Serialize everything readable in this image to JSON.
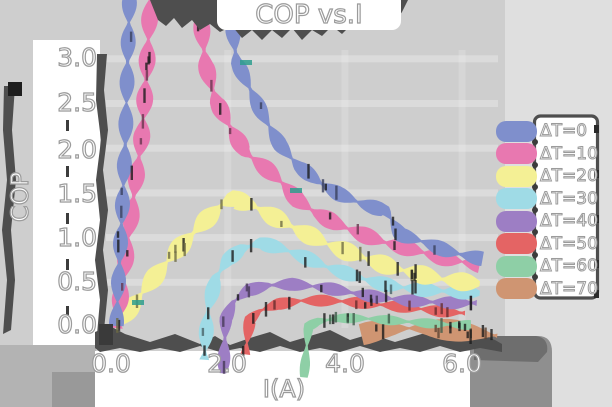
{
  "title": "COP vs.I",
  "axes": {
    "xlabel": "I(A)",
    "ylabel": "COP",
    "xtick_labels": [
      "0.0",
      "2.0",
      "4.0",
      "6.0"
    ],
    "ytick_labels": [
      "3.0",
      "2.5",
      "2.0",
      "1.5",
      "1.0",
      "0.5",
      "0.0"
    ]
  },
  "legend": {
    "position": "right",
    "entries": [
      {
        "label": "ΔT=0",
        "color": "#7f8fcc"
      },
      {
        "label": "ΔT=10",
        "color": "#e878b0"
      },
      {
        "label": "ΔT=20",
        "color": "#f4f095"
      },
      {
        "label": "ΔT=30",
        "color": "#9fdbe6"
      },
      {
        "label": "ΔT=40",
        "color": "#9d7ec4"
      },
      {
        "label": "ΔT=50",
        "color": "#e46464"
      },
      {
        "label": "ΔT=60",
        "color": "#8ecfa6"
      },
      {
        "label": "ΔT=70",
        "color": "#cf9572"
      }
    ]
  },
  "colors": {
    "background": "#d4d4d4",
    "panel": "#cecece",
    "right_margin": "#dfdfdf",
    "label_band": "#ffffff",
    "ink": "#4e4e4e",
    "text_fill": "#ffffff",
    "text_outline": "#9b9b9b"
  },
  "chart_data": {
    "type": "line",
    "title": "COP vs.I",
    "xlabel": "I(A)",
    "ylabel": "COP",
    "xlim": [
      0,
      6.6
    ],
    "ylim": [
      0,
      3.0
    ],
    "xticks": [
      0,
      2,
      4,
      6
    ],
    "yticks": [
      3.0,
      2.5,
      2.0,
      1.5,
      1.0,
      0.5,
      0.0
    ],
    "grid": "faint",
    "legend_position": "right",
    "style": "hand-drawn ribbon sketch, COP curves of thermoelectric cooler vs current; ΔT=0..20 rise from origin, higher ΔT curves start at threshold currents; ΔT=0 and ΔT=10 peaks exceed y-axis top",
    "series": [
      {
        "name": "ΔT=0",
        "color": "#7f8fcc",
        "points": [
          [
            0.1,
            0.0
          ],
          [
            0.25,
            2.0
          ],
          [
            0.33,
            3.8
          ],
          [
            2.0,
            3.8
          ],
          [
            2.15,
            2.95
          ],
          [
            2.35,
            2.7
          ],
          [
            2.6,
            2.38
          ],
          [
            2.9,
            2.05
          ],
          [
            3.2,
            1.82
          ],
          [
            3.55,
            1.63
          ],
          [
            3.9,
            1.48
          ],
          [
            4.3,
            1.36
          ],
          [
            4.7,
            1.28
          ],
          [
            4.95,
            1.02
          ],
          [
            5.35,
            0.95
          ],
          [
            5.75,
            0.86
          ],
          [
            6.1,
            0.81
          ],
          [
            6.35,
            0.78
          ]
        ]
      },
      {
        "name": "ΔT=10",
        "color": "#e878b0",
        "points": [
          [
            0.1,
            0.0
          ],
          [
            0.55,
            2.2
          ],
          [
            0.7,
            3.8
          ],
          [
            1.48,
            3.8
          ],
          [
            1.62,
            2.95
          ],
          [
            1.8,
            2.55
          ],
          [
            2.0,
            2.3
          ],
          [
            2.3,
            1.95
          ],
          [
            2.65,
            1.76
          ],
          [
            2.95,
            1.58
          ],
          [
            3.2,
            1.4
          ],
          [
            3.5,
            1.27
          ],
          [
            3.85,
            1.16
          ],
          [
            4.25,
            1.06
          ],
          [
            4.65,
            0.97
          ],
          [
            5.05,
            0.9
          ],
          [
            5.45,
            0.82
          ],
          [
            5.85,
            0.74
          ],
          [
            6.3,
            0.68
          ]
        ]
      },
      {
        "name": "ΔT=20",
        "color": "#f4f095",
        "points": [
          [
            0.08,
            0.0
          ],
          [
            0.6,
            0.42
          ],
          [
            1.1,
            0.82
          ],
          [
            1.6,
            1.18
          ],
          [
            1.9,
            1.38
          ],
          [
            2.1,
            1.45
          ],
          [
            2.45,
            1.37
          ],
          [
            2.85,
            1.22
          ],
          [
            3.25,
            1.07
          ],
          [
            3.65,
            0.93
          ],
          [
            4.05,
            0.82
          ],
          [
            4.45,
            0.73
          ],
          [
            4.85,
            0.65
          ],
          [
            5.25,
            0.6
          ],
          [
            5.65,
            0.55
          ],
          [
            6.05,
            0.52
          ],
          [
            6.3,
            0.5
          ]
        ]
      },
      {
        "name": "ΔT=30",
        "color": "#9fdbe6",
        "points": [
          [
            1.6,
            -0.35
          ],
          [
            1.66,
            0.2
          ],
          [
            1.8,
            0.55
          ],
          [
            2.0,
            0.74
          ],
          [
            2.25,
            0.86
          ],
          [
            2.55,
            0.92
          ],
          [
            2.9,
            0.87
          ],
          [
            3.3,
            0.78
          ],
          [
            3.7,
            0.68
          ],
          [
            4.1,
            0.6
          ],
          [
            4.5,
            0.52
          ],
          [
            4.9,
            0.46
          ],
          [
            5.3,
            0.42
          ],
          [
            5.7,
            0.39
          ],
          [
            6.1,
            0.37
          ],
          [
            6.3,
            0.36
          ]
        ]
      },
      {
        "name": "ΔT=40",
        "color": "#9d7ec4",
        "points": [
          [
            1.92,
            -0.5
          ],
          [
            1.97,
            0.1
          ],
          [
            2.1,
            0.28
          ],
          [
            2.35,
            0.4
          ],
          [
            2.7,
            0.45
          ],
          [
            3.1,
            0.46
          ],
          [
            3.5,
            0.44
          ],
          [
            3.9,
            0.41
          ],
          [
            4.3,
            0.37
          ],
          [
            4.7,
            0.34
          ],
          [
            5.1,
            0.31
          ],
          [
            5.5,
            0.29
          ],
          [
            5.9,
            0.27
          ],
          [
            6.25,
            0.26
          ]
        ]
      },
      {
        "name": "ΔT=50",
        "color": "#e46464",
        "points": [
          [
            2.3,
            -0.3
          ],
          [
            2.38,
            0.1
          ],
          [
            2.55,
            0.2
          ],
          [
            2.85,
            0.27
          ],
          [
            3.25,
            0.3
          ],
          [
            3.65,
            0.29
          ],
          [
            4.05,
            0.27
          ],
          [
            4.45,
            0.24
          ],
          [
            4.85,
            0.22
          ],
          [
            5.25,
            0.2
          ],
          [
            5.65,
            0.18
          ],
          [
            6.05,
            0.17
          ]
        ]
      },
      {
        "name": "ΔT=60",
        "color": "#8ecfa6",
        "points": [
          [
            3.3,
            -0.55
          ],
          [
            3.38,
            0.0
          ],
          [
            3.55,
            0.05
          ],
          [
            3.9,
            0.08
          ],
          [
            4.3,
            0.08
          ],
          [
            4.7,
            0.07
          ],
          [
            5.1,
            0.06
          ],
          [
            5.5,
            0.05
          ],
          [
            5.9,
            0.04
          ],
          [
            6.15,
            0.04
          ]
        ]
      },
      {
        "name": "ΔT=70",
        "color": "#cf9572",
        "points": [
          [
            4.28,
            -0.1
          ],
          [
            4.6,
            -0.05
          ],
          [
            5.0,
            -0.03
          ],
          [
            5.4,
            -0.02
          ],
          [
            5.8,
            -0.03
          ],
          [
            6.2,
            -0.05
          ],
          [
            6.6,
            -0.08
          ]
        ]
      }
    ]
  }
}
